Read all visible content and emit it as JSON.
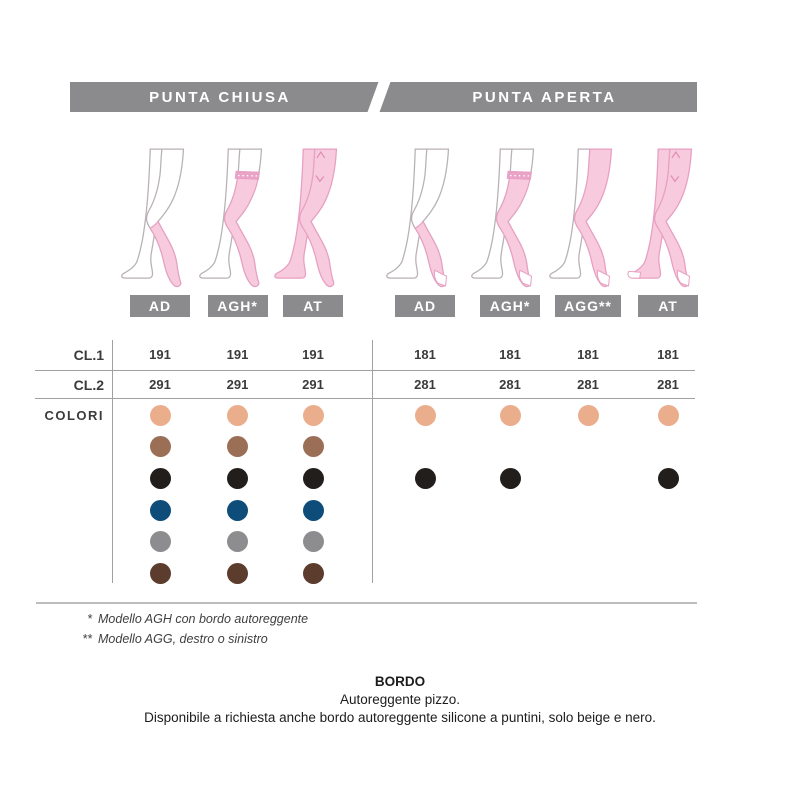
{
  "header": {
    "left_tab": "PUNTA CHIUSA",
    "right_tab": "PUNTA APERTA"
  },
  "row_labels": {
    "cl1": "CL.1",
    "cl2": "CL.2",
    "colors": "COLORI"
  },
  "palette": {
    "beige": "#ebae8d",
    "brown": "#9a6f56",
    "black": "#221e1c",
    "blue": "#0e4d79",
    "grey": "#8d8d8f",
    "dark_brown": "#5c3c2d",
    "stocking_pink": "#f8cade",
    "bar_grey": "#8b8b8d"
  },
  "groups": [
    {
      "title": "PUNTA CHIUSA",
      "models": [
        {
          "code": "AD",
          "style": "ad",
          "toe": "closed",
          "cl1": "191",
          "cl2": "291",
          "swatches": [
            "beige",
            "brown",
            "black",
            "blue",
            "grey",
            "dark_brown"
          ]
        },
        {
          "code": "AGH*",
          "style": "agh",
          "toe": "closed",
          "cl1": "191",
          "cl2": "291",
          "swatches": [
            "beige",
            "brown",
            "black",
            "blue",
            "grey",
            "dark_brown"
          ]
        },
        {
          "code": "AT",
          "style": "at",
          "toe": "closed",
          "cl1": "191",
          "cl2": "291",
          "swatches": [
            "beige",
            "brown",
            "black",
            "blue",
            "grey",
            "dark_brown"
          ]
        }
      ]
    },
    {
      "title": "PUNTA APERTA",
      "models": [
        {
          "code": "AD",
          "style": "ad",
          "toe": "open",
          "cl1": "181",
          "cl2": "281",
          "swatches": [
            "beige",
            null,
            "black",
            null,
            null,
            null
          ]
        },
        {
          "code": "AGH*",
          "style": "agh",
          "toe": "open",
          "cl1": "181",
          "cl2": "281",
          "swatches": [
            "beige",
            null,
            "black",
            null,
            null,
            null
          ]
        },
        {
          "code": "AGG**",
          "style": "agg",
          "toe": "open",
          "cl1": "181",
          "cl2": "281",
          "swatches": [
            "beige",
            null,
            null,
            null,
            null,
            null
          ]
        },
        {
          "code": "AT",
          "style": "at",
          "toe": "open",
          "cl1": "181",
          "cl2": "281",
          "swatches": [
            "beige",
            null,
            "black",
            null,
            null,
            null
          ]
        }
      ]
    }
  ],
  "footnotes": [
    {
      "marker": "*",
      "text": "Modello AGH con bordo autoreggente"
    },
    {
      "marker": "**",
      "text": "Modello AGG, destro o sinistro"
    }
  ],
  "bordo": {
    "title": "BORDO",
    "line1": "Autoreggente pizzo.",
    "line2": "Disponibile a richiesta anche bordo autoreggente silicone a puntini, solo beige e nero."
  }
}
